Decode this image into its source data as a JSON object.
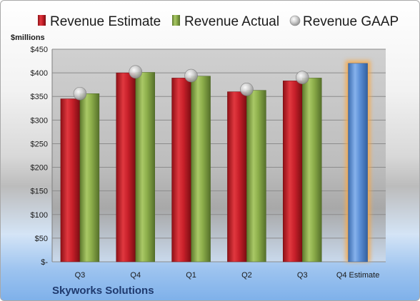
{
  "chart_data": {
    "type": "bar",
    "title": "",
    "ylabel": "$millions",
    "xlabel": "",
    "ylim": [
      0,
      450
    ],
    "yticks": [
      "$-",
      "$50",
      "$100",
      "$150",
      "$200",
      "$250",
      "$300",
      "$350",
      "$400",
      "$450"
    ],
    "ytick_values": [
      0,
      50,
      100,
      150,
      200,
      250,
      300,
      350,
      400,
      450
    ],
    "categories": [
      "Q3",
      "Q4",
      "Q1",
      "Q2",
      "Q3",
      "Q4 Estimate"
    ],
    "series": [
      {
        "name": "Revenue Estimate",
        "type": "bar",
        "color": "#c8202a",
        "values": [
          345,
          400,
          389,
          360,
          383,
          null
        ]
      },
      {
        "name": "Revenue Actual",
        "type": "bar",
        "color": "#8cad4a",
        "values": [
          356,
          401,
          393,
          363,
          389,
          null
        ]
      },
      {
        "name": "Revenue GAAP",
        "type": "marker",
        "color": "#c0c0c0",
        "values": [
          356,
          402,
          394,
          365,
          390,
          null
        ]
      },
      {
        "name": "Q4 Estimate",
        "type": "bar",
        "color": "#5b8fd6",
        "values": [
          null,
          null,
          null,
          null,
          null,
          420
        ]
      }
    ],
    "grid": true,
    "legend_position": "top",
    "company": "Skyworks Solutions"
  }
}
